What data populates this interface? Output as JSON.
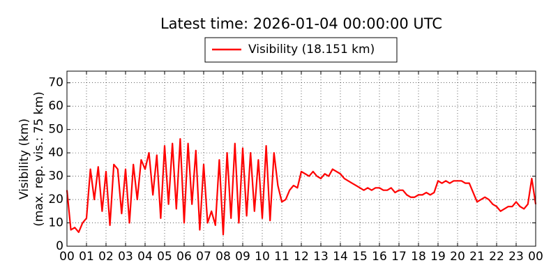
{
  "chart_data": {
    "type": "line",
    "title": "Latest time: 2026-01-04 00:00:00 UTC",
    "ylabel": [
      "Visibility (km)",
      "(max. rep. vis.: 75 km)"
    ],
    "x": [
      0,
      0.2,
      0.4,
      0.6,
      0.8,
      1,
      1.2,
      1.4,
      1.6,
      1.8,
      2,
      2.2,
      2.4,
      2.6,
      2.8,
      3,
      3.2,
      3.4,
      3.6,
      3.8,
      4,
      4.2,
      4.4,
      4.6,
      4.8,
      5,
      5.2,
      5.4,
      5.6,
      5.8,
      6,
      6.2,
      6.4,
      6.6,
      6.8,
      7,
      7.2,
      7.4,
      7.6,
      7.8,
      8,
      8.2,
      8.4,
      8.6,
      8.8,
      9,
      9.2,
      9.4,
      9.6,
      9.8,
      10,
      10.2,
      10.4,
      10.6,
      10.8,
      11,
      11.2,
      11.4,
      11.6,
      11.8,
      12,
      12.2,
      12.4,
      12.6,
      12.8,
      13,
      13.2,
      13.4,
      13.6,
      13.8,
      14,
      14.2,
      14.4,
      14.6,
      14.8,
      15,
      15.2,
      15.4,
      15.6,
      15.8,
      16,
      16.2,
      16.4,
      16.6,
      16.8,
      17,
      17.2,
      17.4,
      17.6,
      17.8,
      18,
      18.2,
      18.4,
      18.6,
      18.8,
      19,
      19.2,
      19.4,
      19.6,
      19.8,
      20,
      20.2,
      20.4,
      20.6,
      20.8,
      21,
      21.2,
      21.4,
      21.6,
      21.8,
      22,
      22.2,
      22.4,
      22.6,
      22.8,
      23,
      23.2,
      23.4,
      23.6,
      23.8,
      24
    ],
    "series": [
      {
        "name": "Visibility (18.151 km)",
        "color": "#ff0000",
        "values": [
          24,
          7,
          8,
          6,
          10,
          12,
          33,
          20,
          34,
          15,
          32,
          9,
          35,
          33,
          14,
          33,
          10,
          35,
          20,
          37,
          33,
          40,
          22,
          39,
          12,
          43,
          18,
          44,
          16,
          46,
          10,
          44,
          18,
          41,
          7,
          35,
          10,
          15,
          9,
          37,
          5,
          40,
          12,
          44,
          10,
          42,
          13,
          40,
          15,
          37,
          12,
          43,
          11,
          40,
          26,
          19,
          20,
          24,
          26,
          25,
          32,
          31,
          30,
          32,
          30,
          29,
          31,
          30,
          33,
          32,
          31,
          29,
          28,
          27,
          26,
          25,
          24,
          25,
          24,
          25,
          25,
          24,
          24,
          25,
          23,
          24,
          24,
          22,
          21,
          21,
          22,
          22,
          23,
          22,
          23,
          28,
          27,
          28,
          27,
          28,
          28,
          28,
          27,
          27,
          23,
          19,
          20,
          21,
          20,
          18,
          17,
          15,
          16,
          17,
          17,
          19,
          17,
          16,
          18,
          29,
          18
        ]
      }
    ],
    "xlim": [
      0,
      24
    ],
    "xticks": [
      {
        "value": 0,
        "label": "00"
      },
      {
        "value": 1,
        "label": "01"
      },
      {
        "value": 2,
        "label": "02"
      },
      {
        "value": 3,
        "label": "03"
      },
      {
        "value": 4,
        "label": "04"
      },
      {
        "value": 5,
        "label": "05"
      },
      {
        "value": 6,
        "label": "06"
      },
      {
        "value": 7,
        "label": "07"
      },
      {
        "value": 8,
        "label": "08"
      },
      {
        "value": 9,
        "label": "09"
      },
      {
        "value": 10,
        "label": "10"
      },
      {
        "value": 11,
        "label": "11"
      },
      {
        "value": 12,
        "label": "12"
      },
      {
        "value": 13,
        "label": "13"
      },
      {
        "value": 14,
        "label": "14"
      },
      {
        "value": 15,
        "label": "15"
      },
      {
        "value": 16,
        "label": "16"
      },
      {
        "value": 17,
        "label": "17"
      },
      {
        "value": 18,
        "label": "18"
      },
      {
        "value": 19,
        "label": "19"
      },
      {
        "value": 20,
        "label": "20"
      },
      {
        "value": 21,
        "label": "21"
      },
      {
        "value": 22,
        "label": "22"
      },
      {
        "value": 23,
        "label": "23"
      },
      {
        "value": 24,
        "label": "00"
      }
    ],
    "ylim": [
      0,
      75
    ],
    "yticks": [
      0,
      10,
      20,
      30,
      40,
      50,
      60,
      70
    ],
    "grid": true
  }
}
